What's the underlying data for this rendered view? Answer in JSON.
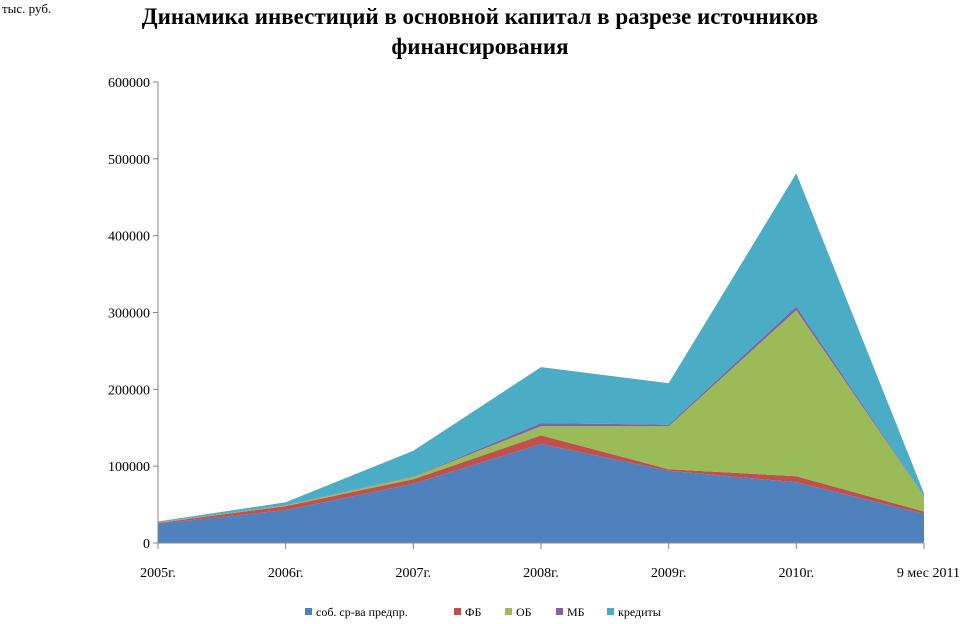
{
  "chart_data": {
    "type": "area",
    "stacked": true,
    "title": "Динамика инвестиций в основной капитал  в разрезе источников финансирования",
    "ylabel": "тыс. руб.",
    "xlabel": "",
    "categories": [
      "2005г.",
      "2006г.",
      "2007г.",
      "2008г.",
      "2009г.",
      "2010г.",
      "9 мес 2011"
    ],
    "ylim": [
      0,
      600000
    ],
    "yticks": [
      0,
      100000,
      200000,
      300000,
      400000,
      500000,
      600000
    ],
    "ytick_labels": [
      "0",
      "100000",
      "200000",
      "300000",
      "400000",
      "500000",
      "600000"
    ],
    "grid": false,
    "legend_position": "bottom",
    "series": [
      {
        "name": "соб. ср-ва предпр.",
        "color": "#4F81BD",
        "values": [
          25000,
          43000,
          77000,
          129000,
          94000,
          79000,
          38000
        ]
      },
      {
        "name": "ФБ",
        "color": "#C0504D",
        "values": [
          1000,
          5000,
          6000,
          11000,
          2000,
          8000,
          3000
        ]
      },
      {
        "name": "ОБ",
        "color": "#9BBB59",
        "values": [
          500,
          1000,
          3000,
          12000,
          56000,
          216000,
          20000
        ]
      },
      {
        "name": "МБ",
        "color": "#8064A2",
        "values": [
          500,
          500,
          500,
          4000,
          2000,
          5000,
          500
        ]
      },
      {
        "name": "кредиты",
        "color": "#4BACC6",
        "values": [
          1000,
          3500,
          33500,
          73000,
          54000,
          173000,
          3000
        ]
      }
    ]
  }
}
